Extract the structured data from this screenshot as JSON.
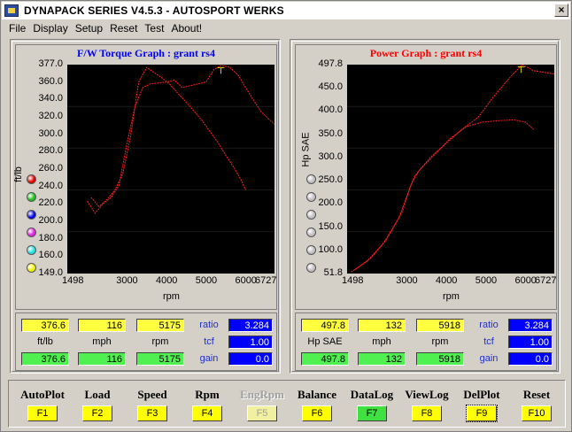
{
  "window": {
    "title": "DYNAPACK SERIES V4.5.3  - AUTOSPORT WERKS",
    "close_label": "×"
  },
  "menu": [
    "File",
    "Display",
    "Setup",
    "Reset",
    "Test",
    "About!"
  ],
  "torque": {
    "title": "F/W Torque Graph : grant rs4",
    "title_color": "#0000ff",
    "ylabel": "ft/lb",
    "xlabel": "rpm",
    "yticks": [
      "377.0",
      "360.0",
      "340.0",
      "320.0",
      "300.0",
      "280.0",
      "260.0",
      "240.0",
      "220.0",
      "200.0",
      "180.0",
      "160.0",
      "149.0"
    ],
    "xticks": [
      "1498",
      "3000",
      "4000",
      "5000",
      "6000",
      "6727"
    ],
    "readout": {
      "row1": [
        "376.6",
        "116",
        "5175"
      ],
      "labels": [
        "ft/lb",
        "mph",
        "rpm"
      ],
      "row3": [
        "376.6",
        "116",
        "5175"
      ],
      "side_labels": [
        "ratio",
        "tcf",
        "gain"
      ],
      "side_values": [
        "3.284",
        "1.00",
        "0.0"
      ]
    }
  },
  "power": {
    "title": "Power Graph : grant rs4",
    "title_color": "#ff0000",
    "ylabel": "Hp SAE",
    "xlabel": "rpm",
    "yticks": [
      "497.8",
      "450.0",
      "400.0",
      "350.0",
      "300.0",
      "250.0",
      "200.0",
      "150.0",
      "100.0",
      "51.8"
    ],
    "xticks": [
      "1498",
      "3000",
      "4000",
      "5000",
      "6000",
      "6727"
    ],
    "readout": {
      "row1": [
        "497.8",
        "132",
        "5918"
      ],
      "labels": [
        "Hp SAE",
        "mph",
        "rpm"
      ],
      "row3": [
        "497.8",
        "132",
        "5918"
      ],
      "side_labels": [
        "ratio",
        "tcf",
        "gain"
      ],
      "side_values": [
        "3.284",
        "1.00",
        "0.0"
      ]
    }
  },
  "chart_data": [
    {
      "type": "line",
      "title": "F/W Torque Graph : grant rs4",
      "xlabel": "rpm",
      "ylabel": "ft/lb",
      "xlim": [
        1498,
        6727
      ],
      "ylim": [
        149,
        377
      ],
      "series": [
        {
          "x": [
            2000,
            2200,
            2400,
            2600,
            2800,
            3000,
            3200,
            3400,
            3600,
            3800,
            4000,
            4200,
            4400,
            4600,
            4800,
            5000,
            5200,
            5400,
            5600,
            5800,
            6000,
            6200,
            6400,
            6727
          ],
          "y": [
            228,
            215,
            225,
            232,
            245,
            290,
            330,
            352,
            356,
            357,
            358,
            360,
            352,
            354,
            356,
            358,
            372,
            376,
            374,
            366,
            352,
            338,
            325,
            312
          ]
        },
        {
          "x": [
            2100,
            2300,
            2500,
            2700,
            2900,
            3100,
            3300,
            3500,
            3700,
            3900,
            4100,
            4300,
            4500,
            4700,
            4900,
            5100,
            5300,
            5500,
            5700,
            5900,
            6000
          ],
          "y": [
            232,
            222,
            230,
            240,
            258,
            300,
            358,
            374,
            368,
            362,
            355,
            345,
            336,
            326,
            316,
            304,
            292,
            278,
            265,
            250,
            240
          ]
        }
      ]
    },
    {
      "type": "line",
      "title": "Power Graph : grant rs4",
      "xlabel": "rpm",
      "ylabel": "Hp SAE",
      "xlim": [
        1498,
        6727
      ],
      "ylim": [
        51.8,
        497.8
      ],
      "series": [
        {
          "x": [
            1600,
            2000,
            2400,
            2800,
            3000,
            3200,
            3600,
            4000,
            4400,
            4800,
            5200,
            5600,
            5918,
            6200,
            6727
          ],
          "y": [
            55,
            78,
            115,
            170,
            215,
            260,
            300,
            330,
            360,
            385,
            430,
            470,
            497.8,
            485,
            478
          ]
        },
        {
          "x": [
            1700,
            2100,
            2500,
            2900,
            3100,
            3300,
            3700,
            4100,
            4500,
            4900,
            5300,
            5700,
            6000,
            6200
          ],
          "y": [
            60,
            85,
            125,
            185,
            240,
            270,
            305,
            340,
            365,
            375,
            378,
            380,
            375,
            360
          ]
        }
      ]
    }
  ],
  "torque_dots": [
    "#e00000",
    "#20c020",
    "#0000e0",
    "#e020e0",
    "#20e0e0",
    "#f0f000"
  ],
  "fkeys": [
    {
      "label": "AutoPlot",
      "key": "F1"
    },
    {
      "label": "Load",
      "key": "F2"
    },
    {
      "label": "Speed",
      "key": "F3"
    },
    {
      "label": "Rpm",
      "key": "F4"
    },
    {
      "label": "EngRpm",
      "key": "F5"
    },
    {
      "label": "Balance",
      "key": "F6"
    },
    {
      "label": "DataLog",
      "key": "F7"
    },
    {
      "label": "ViewLog",
      "key": "F8"
    },
    {
      "label": "DelPlot",
      "key": "F9"
    },
    {
      "label": "Reset",
      "key": "F10"
    }
  ]
}
